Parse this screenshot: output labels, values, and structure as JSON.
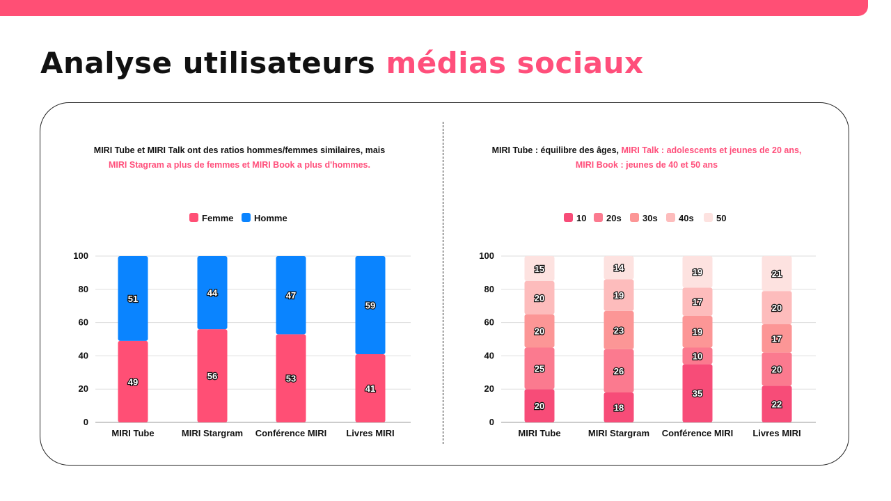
{
  "header": {
    "title_main": "Analyse utilisateurs ",
    "title_highlight": "médias sociaux"
  },
  "colors": {
    "accent": "#ff4f7b",
    "femme": "#ff4f75",
    "homme": "#0a84ff",
    "age": [
      "#f74c78",
      "#fb7a8f",
      "#fc9696",
      "#fdbcbc",
      "#fde2e0"
    ]
  },
  "chart_data": [
    {
      "type": "bar",
      "stacked": true,
      "subtitle_black": "MIRI Tube et MIRI Talk ont des ratios hommes/femmes similaires, mais",
      "subtitle_pink": "MIRI Stagram a plus de femmes et MIRI Book a plus d'hommes.",
      "categories": [
        "MIRI Tube",
        "MIRI Stargram",
        "Conférence MIRI",
        "Livres MIRI"
      ],
      "series": [
        {
          "name": "Femme",
          "values": [
            49,
            56,
            53,
            41
          ]
        },
        {
          "name": "Homme",
          "values": [
            51,
            44,
            47,
            59
          ]
        }
      ],
      "ylim": [
        0,
        100
      ],
      "yticks": [
        "0",
        "20",
        "40",
        "60",
        "80",
        "100"
      ],
      "grid": true,
      "legend": "top"
    },
    {
      "type": "bar",
      "stacked": true,
      "subtitle_black": "MIRI Tube : équilibre des âges, ",
      "subtitle_pink": "MIRI Talk : adolescents et jeunes de 20 ans,",
      "subtitle_pink2": "MIRI Book : jeunes de 40 et 50 ans",
      "categories": [
        "MIRI Tube",
        "MIRI Stargram",
        "Conférence MIRI",
        "Livres MIRI"
      ],
      "series": [
        {
          "name": "10",
          "values": [
            20,
            18,
            35,
            22
          ]
        },
        {
          "name": "20s",
          "values": [
            25,
            26,
            10,
            20
          ]
        },
        {
          "name": "30s",
          "values": [
            20,
            23,
            19,
            17
          ]
        },
        {
          "name": "40s",
          "values": [
            20,
            19,
            17,
            20
          ]
        },
        {
          "name": "50",
          "values": [
            15,
            14,
            19,
            21
          ]
        }
      ],
      "ylim": [
        0,
        100
      ],
      "yticks": [
        "0",
        "20",
        "40",
        "60",
        "80",
        "100"
      ],
      "grid": true,
      "legend": "top"
    }
  ]
}
